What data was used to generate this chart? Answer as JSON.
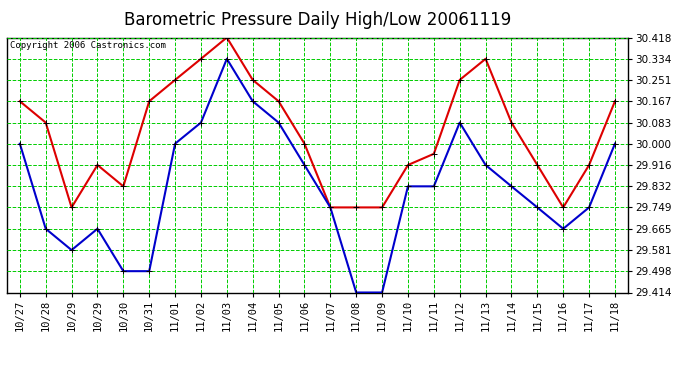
{
  "title": "Barometric Pressure Daily High/Low 20061119",
  "copyright": "Copyright 2006 Castronics.com",
  "background_color": "#ffffff",
  "plot_background": "#ffffff",
  "grid_color": "#00cc00",
  "xlabels": [
    "10/27",
    "10/28",
    "10/29",
    "10/29",
    "10/30",
    "10/31",
    "11/01",
    "11/02",
    "11/03",
    "11/04",
    "11/05",
    "11/06",
    "11/07",
    "11/08",
    "11/09",
    "11/10",
    "11/11",
    "11/12",
    "11/13",
    "11/14",
    "11/15",
    "11/16",
    "11/17",
    "11/18"
  ],
  "high_values": [
    30.167,
    30.083,
    29.749,
    29.916,
    29.832,
    30.167,
    30.251,
    30.334,
    30.418,
    30.251,
    30.167,
    30.0,
    29.749,
    29.749,
    29.749,
    29.916,
    29.96,
    30.251,
    30.334,
    30.083,
    29.916,
    29.749,
    29.916,
    30.167
  ],
  "low_values": [
    30.0,
    29.665,
    29.581,
    29.665,
    29.498,
    29.498,
    30.0,
    30.083,
    30.334,
    30.167,
    30.083,
    29.916,
    29.749,
    29.414,
    29.414,
    29.832,
    29.832,
    30.083,
    29.916,
    29.832,
    29.749,
    29.665,
    29.749,
    30.0
  ],
  "high_color": "#dd0000",
  "low_color": "#0000cc",
  "ylim_min": 29.414,
  "ylim_max": 30.418,
  "yticks": [
    29.414,
    29.498,
    29.581,
    29.665,
    29.749,
    29.832,
    29.916,
    30.0,
    30.083,
    30.167,
    30.251,
    30.334,
    30.418
  ],
  "title_fontsize": 12,
  "tick_fontsize": 7.5,
  "copyright_fontsize": 6.5,
  "line_width": 1.5,
  "marker_size": 4
}
